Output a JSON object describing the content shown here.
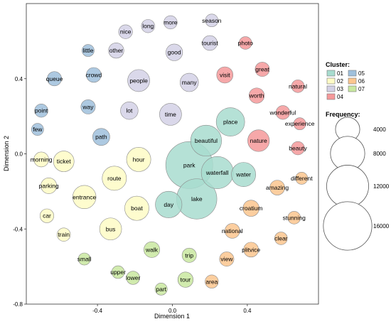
{
  "chart_data": {
    "type": "scatter",
    "xlabel": "Dimension 1",
    "ylabel": "Dimension 2",
    "xlim": [
      -0.78,
      0.78
    ],
    "ylim": [
      -0.8,
      0.8
    ],
    "xticks": [
      "-0.4",
      "0.0",
      "0.4"
    ],
    "xtick_values": [
      -0.4,
      0.0,
      0.4
    ],
    "yticks": [
      "-0.8",
      "-0.4",
      "0.0",
      "0.4"
    ],
    "ytick_values": [
      -0.8,
      -0.4,
      0.0,
      0.4
    ],
    "grid": false,
    "legend": {
      "position": "right",
      "cluster_title": "Cluster:",
      "clusters": [
        {
          "label": "01",
          "color": "#a8dccf"
        },
        {
          "label": "02",
          "color": "#fefbc6"
        },
        {
          "label": "03",
          "color": "#d3d1e6"
        },
        {
          "label": "04",
          "color": "#f5999a"
        },
        {
          "label": "05",
          "color": "#9fc0dc"
        },
        {
          "label": "06",
          "color": "#fbc68e"
        },
        {
          "label": "07",
          "color": "#c9e8a0"
        }
      ],
      "frequency_title": "Frequency:",
      "frequencies": [
        4000,
        8000,
        12000,
        16000
      ]
    },
    "points": [
      {
        "label": "park",
        "x": 0.09,
        "y": -0.06,
        "size": 15000,
        "cluster": "01"
      },
      {
        "label": "lake",
        "x": 0.13,
        "y": -0.24,
        "size": 11000,
        "cluster": "01"
      },
      {
        "label": "waterfall",
        "x": 0.24,
        "y": -0.1,
        "size": 7000,
        "cluster": "01"
      },
      {
        "label": "beautiful",
        "x": 0.18,
        "y": 0.07,
        "size": 6500,
        "cluster": "01"
      },
      {
        "label": "place",
        "x": 0.31,
        "y": 0.17,
        "size": 5500,
        "cluster": "01"
      },
      {
        "label": "day",
        "x": -0.02,
        "y": -0.27,
        "size": 4800,
        "cluster": "01"
      },
      {
        "label": "water",
        "x": 0.38,
        "y": -0.11,
        "size": 4000,
        "cluster": "01"
      },
      {
        "label": "hour",
        "x": -0.18,
        "y": -0.03,
        "size": 4000,
        "cluster": "02"
      },
      {
        "label": "route",
        "x": -0.31,
        "y": -0.13,
        "size": 4000,
        "cluster": "02"
      },
      {
        "label": "boat",
        "x": -0.19,
        "y": -0.29,
        "size": 4000,
        "cluster": "02"
      },
      {
        "label": "entrance",
        "x": -0.47,
        "y": -0.23,
        "size": 3700,
        "cluster": "02"
      },
      {
        "label": "bus",
        "x": -0.33,
        "y": -0.4,
        "size": 3300,
        "cluster": "02"
      },
      {
        "label": "ticket",
        "x": -0.58,
        "y": -0.04,
        "size": 2900,
        "cluster": "02"
      },
      {
        "label": "parking",
        "x": -0.66,
        "y": -0.17,
        "size": 1700,
        "cluster": "02"
      },
      {
        "label": "morning",
        "x": -0.7,
        "y": -0.03,
        "size": 1500,
        "cluster": "02"
      },
      {
        "label": "car",
        "x": -0.67,
        "y": -0.33,
        "size": 1300,
        "cluster": "02"
      },
      {
        "label": "train",
        "x": -0.58,
        "y": -0.43,
        "size": 1200,
        "cluster": "02"
      },
      {
        "label": "people",
        "x": -0.18,
        "y": 0.39,
        "size": 3300,
        "cluster": "03"
      },
      {
        "label": "time",
        "x": -0.01,
        "y": 0.21,
        "size": 3300,
        "cluster": "03"
      },
      {
        "label": "many",
        "x": 0.09,
        "y": 0.38,
        "size": 2300,
        "cluster": "03"
      },
      {
        "label": "lot",
        "x": -0.23,
        "y": 0.23,
        "size": 2100,
        "cluster": "03"
      },
      {
        "label": "good",
        "x": 0.01,
        "y": 0.54,
        "size": 1900,
        "cluster": "03"
      },
      {
        "label": "other",
        "x": -0.3,
        "y": 0.55,
        "size": 1600,
        "cluster": "03"
      },
      {
        "label": "tourist",
        "x": 0.2,
        "y": 0.59,
        "size": 1500,
        "cluster": "03"
      },
      {
        "label": "nice",
        "x": -0.25,
        "y": 0.65,
        "size": 1300,
        "cluster": "03"
      },
      {
        "label": "long",
        "x": -0.13,
        "y": 0.68,
        "size": 1200,
        "cluster": "03"
      },
      {
        "label": "more",
        "x": -0.01,
        "y": 0.7,
        "size": 1200,
        "cluster": "03"
      },
      {
        "label": "season",
        "x": 0.21,
        "y": 0.71,
        "size": 1100,
        "cluster": "03"
      },
      {
        "label": "nature",
        "x": 0.46,
        "y": 0.07,
        "size": 3200,
        "cluster": "04"
      },
      {
        "label": "visit",
        "x": 0.28,
        "y": 0.42,
        "size": 1800,
        "cluster": "04"
      },
      {
        "label": "worth",
        "x": 0.45,
        "y": 0.31,
        "size": 1600,
        "cluster": "04"
      },
      {
        "label": "great",
        "x": 0.48,
        "y": 0.45,
        "size": 1400,
        "cluster": "04"
      },
      {
        "label": "wonderful",
        "x": 0.59,
        "y": 0.22,
        "size": 1300,
        "cluster": "04"
      },
      {
        "label": "beauty",
        "x": 0.67,
        "y": 0.03,
        "size": 1200,
        "cluster": "04"
      },
      {
        "label": "photo",
        "x": 0.39,
        "y": 0.59,
        "size": 1100,
        "cluster": "04"
      },
      {
        "label": "natural",
        "x": 0.67,
        "y": 0.36,
        "size": 1100,
        "cluster": "04"
      },
      {
        "label": "experience",
        "x": 0.68,
        "y": 0.16,
        "size": 1000,
        "cluster": "04"
      },
      {
        "label": "path",
        "x": -0.38,
        "y": 0.09,
        "size": 2000,
        "cluster": "05"
      },
      {
        "label": "crowd",
        "x": -0.42,
        "y": 0.42,
        "size": 1500,
        "cluster": "05"
      },
      {
        "label": "queue",
        "x": -0.63,
        "y": 0.4,
        "size": 1400,
        "cluster": "05"
      },
      {
        "label": "way",
        "x": -0.45,
        "y": 0.25,
        "size": 1400,
        "cluster": "05"
      },
      {
        "label": "point",
        "x": -0.7,
        "y": 0.23,
        "size": 1200,
        "cluster": "05"
      },
      {
        "label": "few",
        "x": -0.72,
        "y": 0.13,
        "size": 1000,
        "cluster": "05"
      },
      {
        "label": "little",
        "x": -0.45,
        "y": 0.55,
        "size": 1000,
        "cluster": "05"
      },
      {
        "label": "croatium",
        "x": 0.42,
        "y": -0.29,
        "size": 1800,
        "cluster": "06"
      },
      {
        "label": "amazing",
        "x": 0.56,
        "y": -0.18,
        "size": 1500,
        "cluster": "06"
      },
      {
        "label": "national",
        "x": 0.32,
        "y": -0.41,
        "size": 1500,
        "cluster": "06"
      },
      {
        "label": "plitvice",
        "x": 0.42,
        "y": -0.51,
        "size": 1500,
        "cluster": "06"
      },
      {
        "label": "view",
        "x": 0.29,
        "y": -0.56,
        "size": 1400,
        "cluster": "06"
      },
      {
        "label": "clear",
        "x": 0.58,
        "y": -0.45,
        "size": 1100,
        "cluster": "06"
      },
      {
        "label": "stunning",
        "x": 0.65,
        "y": -0.34,
        "size": 1100,
        "cluster": "06"
      },
      {
        "label": "different",
        "x": 0.69,
        "y": -0.13,
        "size": 1000,
        "cluster": "06"
      },
      {
        "label": "area",
        "x": 0.21,
        "y": -0.68,
        "size": 1200,
        "cluster": "06"
      },
      {
        "label": "walk",
        "x": -0.11,
        "y": -0.51,
        "size": 1700,
        "cluster": "07"
      },
      {
        "label": "tour",
        "x": 0.07,
        "y": -0.67,
        "size": 1600,
        "cluster": "07"
      },
      {
        "label": "trip",
        "x": 0.09,
        "y": -0.54,
        "size": 1400,
        "cluster": "07"
      },
      {
        "label": "lower",
        "x": -0.21,
        "y": -0.66,
        "size": 1200,
        "cluster": "07"
      },
      {
        "label": "upper",
        "x": -0.29,
        "y": -0.63,
        "size": 1100,
        "cluster": "07"
      },
      {
        "label": "small",
        "x": -0.47,
        "y": -0.56,
        "size": 1000,
        "cluster": "07"
      },
      {
        "label": "part",
        "x": -0.06,
        "y": -0.72,
        "size": 1000,
        "cluster": "07"
      }
    ]
  }
}
